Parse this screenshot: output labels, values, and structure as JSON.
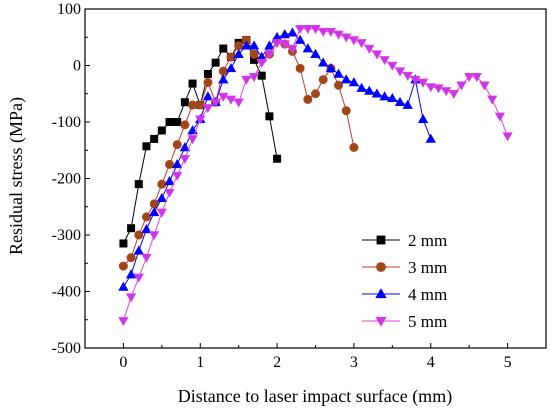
{
  "chart_data": {
    "type": "line",
    "xlabel": "Distance to laser impact surface (mm)",
    "ylabel": "Residual stress (MPa)",
    "xlim": [
      -0.5,
      5.5
    ],
    "ylim": [
      -500,
      100
    ],
    "xticks": [
      0,
      1,
      2,
      3,
      4,
      5
    ],
    "yticks": [
      -500,
      -400,
      -300,
      -200,
      -100,
      0,
      100
    ],
    "legend_position": "bottom-right",
    "series": [
      {
        "name": "2 mm",
        "color": "#000000",
        "fill": "#000000",
        "marker": "square",
        "x": [
          0,
          0.1,
          0.2,
          0.3,
          0.4,
          0.5,
          0.6,
          0.7,
          0.8,
          0.9,
          1.0,
          1.1,
          1.2,
          1.3,
          1.4,
          1.5,
          1.6,
          1.7,
          1.8,
          1.9,
          2.0
        ],
        "y": [
          -315,
          -288,
          -210,
          -143,
          -130,
          -115,
          -100,
          -100,
          -65,
          -32,
          -70,
          -15,
          5,
          30,
          15,
          40,
          45,
          10,
          -18,
          -90,
          -165
        ]
      },
      {
        "name": "3 mm",
        "color": "#c0392b",
        "fill": "#9b4a16",
        "marker": "circle",
        "x": [
          0,
          0.1,
          0.2,
          0.3,
          0.4,
          0.5,
          0.6,
          0.7,
          0.8,
          0.9,
          1.0,
          1.1,
          1.2,
          1.3,
          1.4,
          1.5,
          1.6,
          1.7,
          1.8,
          1.9,
          2.0,
          2.1,
          2.2,
          2.3,
          2.4,
          2.5,
          2.6,
          2.7,
          2.8,
          2.9,
          3.0
        ],
        "y": [
          -355,
          -340,
          -300,
          -268,
          -245,
          -210,
          -175,
          -140,
          -105,
          -70,
          -70,
          -30,
          -65,
          -10,
          15,
          35,
          45,
          20,
          10,
          20,
          45,
          38,
          25,
          -5,
          -60,
          -50,
          -25,
          -5,
          -35,
          -80,
          -145
        ]
      },
      {
        "name": "4 mm",
        "color": "#0000ff",
        "fill": "#0000ff",
        "marker": "triangle-up",
        "x": [
          0,
          0.1,
          0.2,
          0.3,
          0.4,
          0.5,
          0.6,
          0.7,
          0.8,
          0.9,
          1.0,
          1.1,
          1.2,
          1.3,
          1.4,
          1.5,
          1.6,
          1.7,
          1.8,
          1.9,
          2.0,
          2.1,
          2.2,
          2.3,
          2.4,
          2.5,
          2.6,
          2.7,
          2.8,
          2.9,
          3.0,
          3.1,
          3.2,
          3.3,
          3.4,
          3.5,
          3.6,
          3.7,
          3.8,
          3.9,
          4.0
        ],
        "y": [
          -392,
          -370,
          -328,
          -290,
          -260,
          -235,
          -205,
          -175,
          -145,
          -115,
          -95,
          -55,
          -65,
          -25,
          -5,
          20,
          35,
          35,
          15,
          35,
          50,
          55,
          58,
          45,
          30,
          20,
          5,
          -5,
          -15,
          -25,
          -30,
          -40,
          -45,
          -50,
          -55,
          -58,
          -65,
          -70,
          -25,
          -95,
          -130
        ]
      },
      {
        "name": "5 mm",
        "color": "#dd44dd",
        "fill": "#cc33ee",
        "marker": "triangle-down",
        "x": [
          0,
          0.1,
          0.2,
          0.3,
          0.4,
          0.5,
          0.6,
          0.7,
          0.8,
          0.9,
          1.0,
          1.1,
          1.2,
          1.3,
          1.4,
          1.5,
          1.6,
          1.7,
          1.8,
          1.9,
          2.0,
          2.1,
          2.2,
          2.3,
          2.4,
          2.5,
          2.6,
          2.7,
          2.8,
          2.9,
          3.0,
          3.1,
          3.2,
          3.3,
          3.4,
          3.5,
          3.6,
          3.7,
          3.8,
          3.9,
          4.0,
          4.1,
          4.2,
          4.3,
          4.4,
          4.5,
          4.6,
          4.7,
          4.8,
          4.9,
          5.0
        ],
        "y": [
          -452,
          -410,
          -375,
          -340,
          -300,
          -260,
          -225,
          -195,
          -165,
          -130,
          -95,
          -75,
          -65,
          -55,
          -60,
          -65,
          -25,
          -20,
          5,
          20,
          40,
          38,
          30,
          65,
          65,
          65,
          60,
          60,
          55,
          50,
          45,
          40,
          30,
          20,
          10,
          0,
          -10,
          -18,
          -25,
          -30,
          -38,
          -40,
          -45,
          -50,
          -35,
          -20,
          -20,
          -35,
          -60,
          -90,
          -125
        ]
      }
    ]
  }
}
